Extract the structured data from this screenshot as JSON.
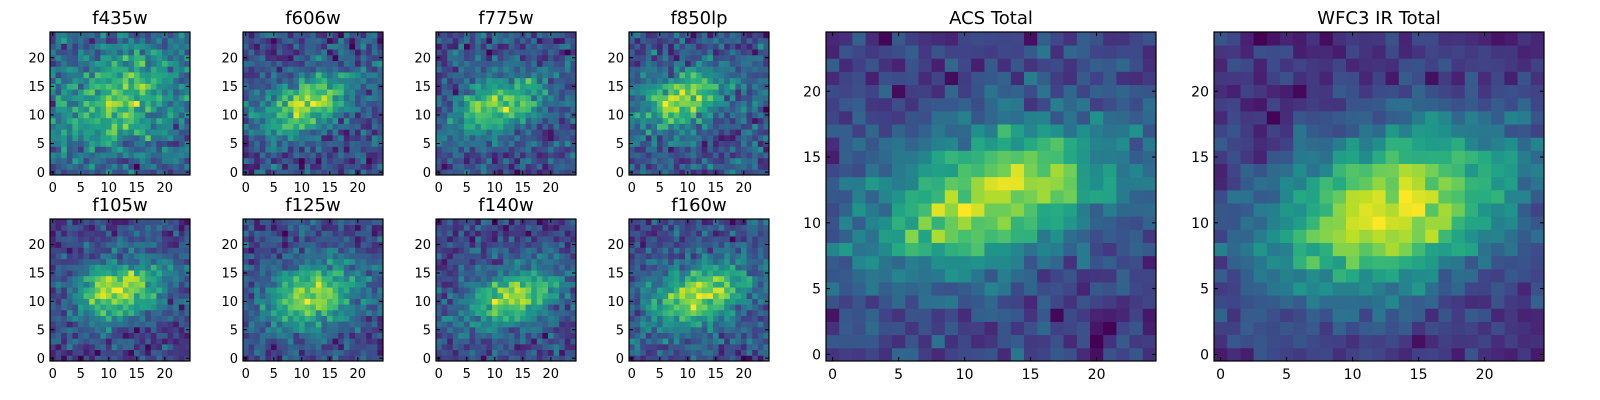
{
  "chart_data": [
    {
      "type": "heatmap",
      "title": "f435w",
      "grid_size": 25,
      "xticks": [
        0,
        5,
        10,
        15,
        20
      ],
      "yticks": [
        0,
        5,
        10,
        15,
        20
      ],
      "xlim": [
        0,
        25
      ],
      "ylim": [
        0,
        25
      ],
      "colormap": "viridis",
      "peak": [
        12,
        13
      ],
      "spread": [
        7,
        5
      ],
      "tilt": -0.35,
      "noise": 0.85,
      "seed": 11
    },
    {
      "type": "heatmap",
      "title": "f606w",
      "grid_size": 25,
      "xticks": [
        0,
        5,
        10,
        15,
        20
      ],
      "yticks": [
        0,
        5,
        10,
        15,
        20
      ],
      "xlim": [
        0,
        25
      ],
      "ylim": [
        0,
        25
      ],
      "colormap": "viridis",
      "peak": [
        11,
        12
      ],
      "spread": [
        6,
        3
      ],
      "tilt": -0.35,
      "noise": 0.55,
      "seed": 22
    },
    {
      "type": "heatmap",
      "title": "f775w",
      "grid_size": 25,
      "xticks": [
        0,
        5,
        10,
        15,
        20
      ],
      "yticks": [
        0,
        5,
        10,
        15,
        20
      ],
      "xlim": [
        0,
        25
      ],
      "ylim": [
        0,
        25
      ],
      "colormap": "viridis",
      "peak": [
        11,
        12
      ],
      "spread": [
        6,
        3
      ],
      "tilt": -0.35,
      "noise": 0.6,
      "seed": 33
    },
    {
      "type": "heatmap",
      "title": "f850lp",
      "grid_size": 25,
      "xticks": [
        0,
        5,
        10,
        15,
        20
      ],
      "yticks": [
        0,
        5,
        10,
        15,
        20
      ],
      "xlim": [
        0,
        25
      ],
      "ylim": [
        0,
        25
      ],
      "colormap": "viridis",
      "peak": [
        9,
        13
      ],
      "spread": [
        6,
        3
      ],
      "tilt": -0.35,
      "noise": 0.6,
      "seed": 44
    },
    {
      "type": "heatmap",
      "title": "f105w",
      "grid_size": 25,
      "xticks": [
        0,
        5,
        10,
        15,
        20
      ],
      "yticks": [
        0,
        5,
        10,
        15,
        20
      ],
      "xlim": [
        0,
        25
      ],
      "ylim": [
        0,
        25
      ],
      "colormap": "viridis",
      "peak": [
        12,
        12
      ],
      "spread": [
        6,
        3.5
      ],
      "tilt": -0.35,
      "noise": 0.45,
      "seed": 55
    },
    {
      "type": "heatmap",
      "title": "f125w",
      "grid_size": 25,
      "xticks": [
        0,
        5,
        10,
        15,
        20
      ],
      "yticks": [
        0,
        5,
        10,
        15,
        20
      ],
      "xlim": [
        0,
        25
      ],
      "ylim": [
        0,
        25
      ],
      "colormap": "viridis",
      "peak": [
        12,
        11
      ],
      "spread": [
        6,
        3.5
      ],
      "tilt": -0.35,
      "noise": 0.45,
      "seed": 66
    },
    {
      "type": "heatmap",
      "title": "f140w",
      "grid_size": 25,
      "xticks": [
        0,
        5,
        10,
        15,
        20
      ],
      "yticks": [
        0,
        5,
        10,
        15,
        20
      ],
      "xlim": [
        0,
        25
      ],
      "ylim": [
        0,
        25
      ],
      "colormap": "viridis",
      "peak": [
        13,
        11
      ],
      "spread": [
        6,
        3.5
      ],
      "tilt": -0.35,
      "noise": 0.5,
      "seed": 77
    },
    {
      "type": "heatmap",
      "title": "f160w",
      "grid_size": 25,
      "xticks": [
        0,
        5,
        10,
        15,
        20
      ],
      "yticks": [
        0,
        5,
        10,
        15,
        20
      ],
      "xlim": [
        0,
        25
      ],
      "ylim": [
        0,
        25
      ],
      "colormap": "viridis",
      "peak": [
        12,
        11
      ],
      "spread": [
        6,
        3.5
      ],
      "tilt": -0.35,
      "noise": 0.45,
      "seed": 88
    },
    {
      "type": "heatmap",
      "title": "ACS Total",
      "grid_size": 25,
      "xticks": [
        0,
        5,
        10,
        15,
        20
      ],
      "yticks": [
        0,
        5,
        10,
        15,
        20
      ],
      "xlim": [
        0,
        25
      ],
      "ylim": [
        0,
        25
      ],
      "colormap": "viridis",
      "peak": [
        12,
        12
      ],
      "spread": [
        7,
        3.5
      ],
      "tilt": -0.35,
      "noise": 0.35,
      "seed": 99
    },
    {
      "type": "heatmap",
      "title": "WFC3 IR Total",
      "grid_size": 25,
      "xticks": [
        0,
        5,
        10,
        15,
        20
      ],
      "yticks": [
        0,
        5,
        10,
        15,
        20
      ],
      "xlim": [
        0,
        25
      ],
      "ylim": [
        0,
        25
      ],
      "colormap": "viridis",
      "peak": [
        13,
        11
      ],
      "spread": [
        7,
        4
      ],
      "tilt": -0.35,
      "noise": 0.25,
      "seed": 123
    }
  ]
}
